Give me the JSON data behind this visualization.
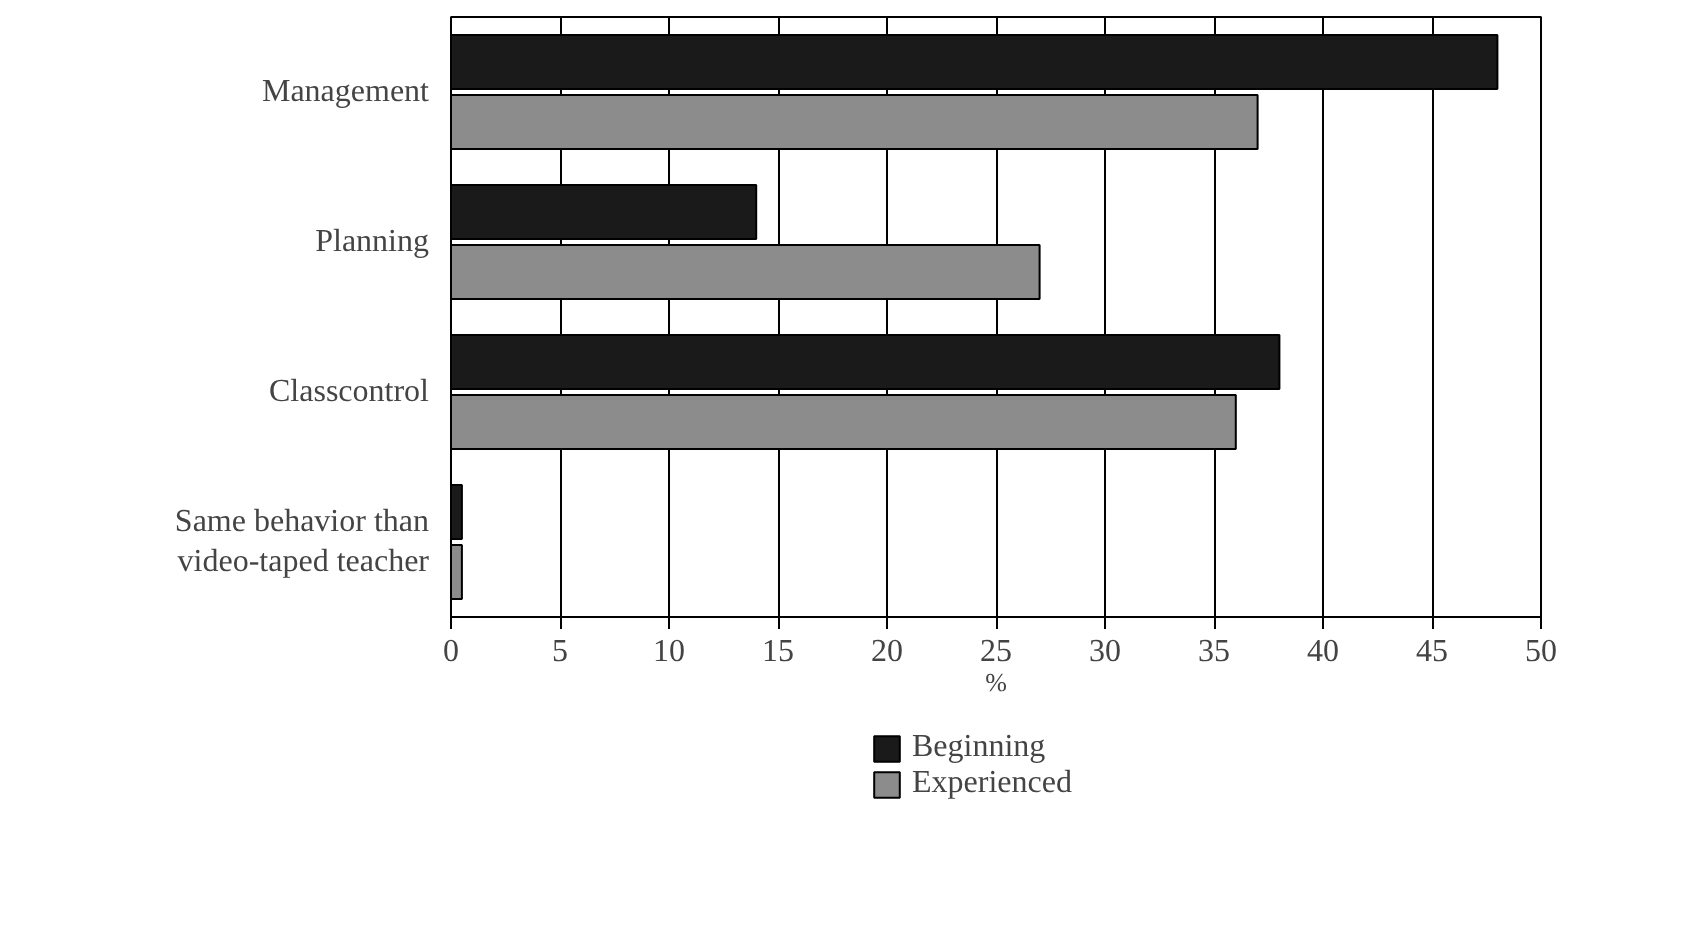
{
  "chart_data": {
    "type": "bar",
    "orientation": "horizontal",
    "categories": [
      "Management",
      "Planning",
      "Classcontrol",
      "Same behavior than\nvideo-taped teacher"
    ],
    "series": [
      {
        "name": "Beginning",
        "color": "#1a1a1a",
        "values": [
          48,
          14,
          38,
          0.5
        ]
      },
      {
        "name": "Experienced",
        "color": "#8c8c8c",
        "values": [
          37,
          27,
          36,
          0.5
        ]
      }
    ],
    "xlabel": "%",
    "xlim": [
      0,
      50
    ],
    "xticks": [
      0,
      5,
      10,
      15,
      20,
      25,
      30,
      35,
      40,
      45,
      50
    ],
    "grid": "x",
    "legend": "bottom left"
  }
}
